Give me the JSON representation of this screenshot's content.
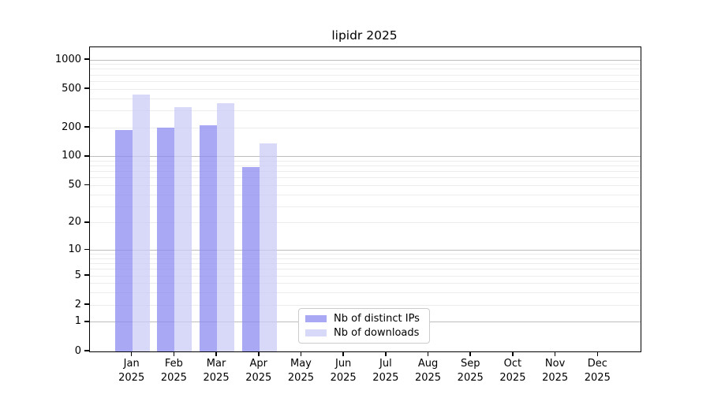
{
  "title": "lipidr 2025",
  "legend": {
    "items": [
      {
        "label": "Nb of distinct IPs"
      },
      {
        "label": "Nb of downloads"
      }
    ]
  },
  "chart_data": {
    "type": "bar",
    "title": "lipidr 2025",
    "xlabel": "",
    "ylabel": "",
    "scale": "log10(1+y)",
    "ylim": [
      0,
      1350
    ],
    "grid": true,
    "legend_position": "bottom-center",
    "yticks": [
      0,
      1,
      2,
      5,
      10,
      20,
      50,
      100,
      200,
      500,
      1000
    ],
    "grid_major": [
      1,
      10,
      100,
      1000
    ],
    "grid_minor": [
      2,
      3,
      4,
      5,
      6,
      7,
      8,
      9,
      20,
      30,
      40,
      50,
      60,
      70,
      80,
      90,
      200,
      300,
      400,
      500,
      600,
      700,
      800,
      900
    ],
    "categories": [
      "Jan 2025",
      "Feb 2025",
      "Mar 2025",
      "Apr 2025",
      "May 2025",
      "Jun 2025",
      "Jul 2025",
      "Aug 2025",
      "Sep 2025",
      "Oct 2025",
      "Nov 2025",
      "Dec 2025"
    ],
    "series": [
      {
        "name": "Nb of distinct IPs",
        "color": "rgba(139,139,241,0.75)",
        "values": [
          188,
          200,
          212,
          78,
          null,
          null,
          null,
          null,
          null,
          null,
          null,
          null
        ]
      },
      {
        "name": "Nb of downloads",
        "color": "rgba(203,203,247,0.75)",
        "values": [
          440,
          325,
          360,
          138,
          null,
          null,
          null,
          null,
          null,
          null,
          null,
          null
        ]
      }
    ]
  },
  "colors": {
    "grid_major": "#bdbdbd",
    "grid_minor": "#ececec",
    "axis": "#000000",
    "legend_border": "#cccccc",
    "background": "#ffffff"
  }
}
